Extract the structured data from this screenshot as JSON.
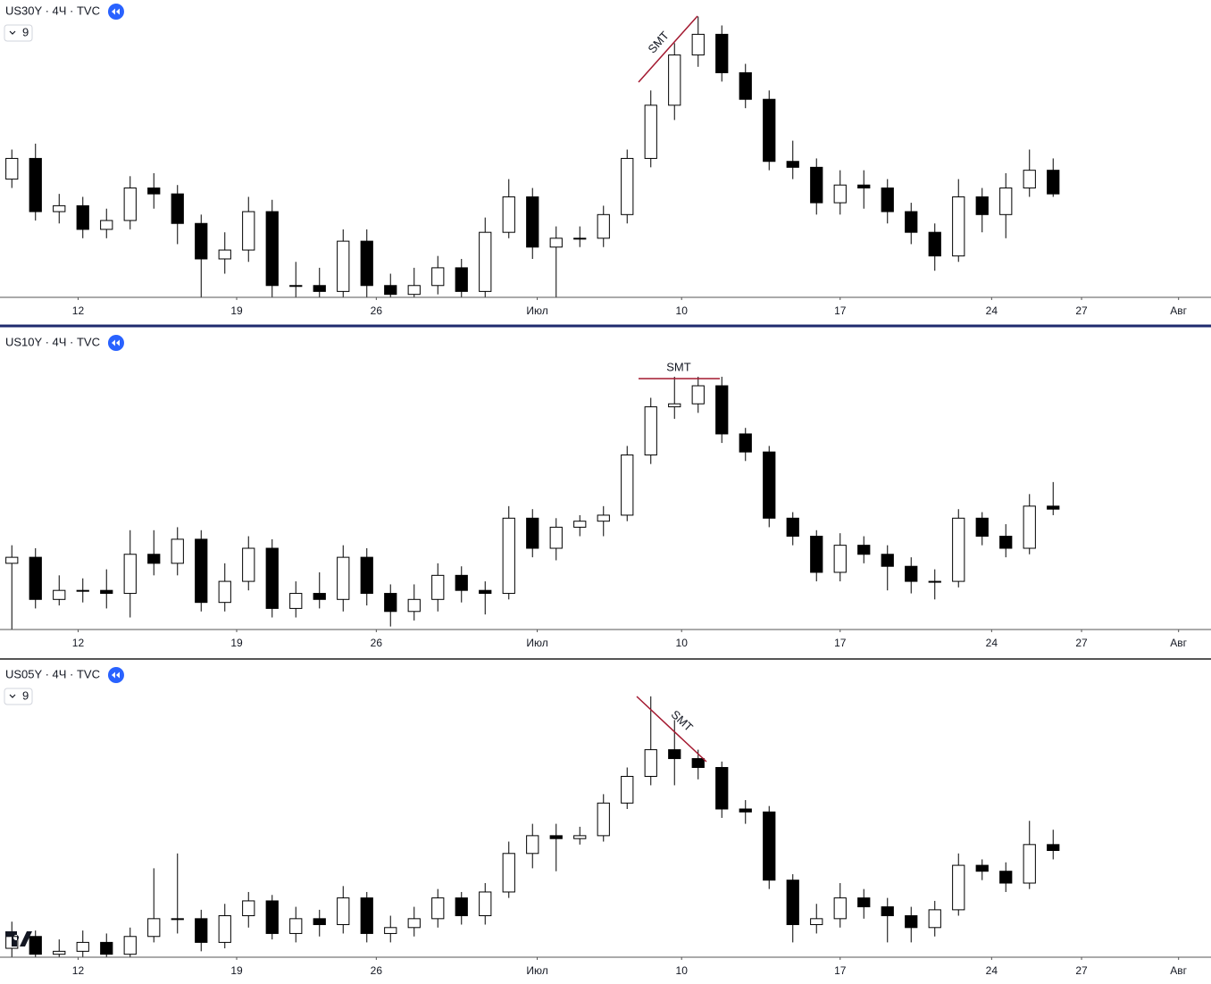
{
  "chart_data": [
    {
      "type": "candlestick",
      "title": "US30Y · 4Ч · TVC",
      "badge": "9",
      "annotation": "SMT",
      "xlim": [
        0,
        51.17
      ],
      "ylim": [
        0,
        100
      ],
      "xticks": [
        {
          "value": 3.3,
          "label": "12"
        },
        {
          "value": 10.0,
          "label": "19"
        },
        {
          "value": 15.9,
          "label": "26"
        },
        {
          "value": 22.7,
          "label": "Июл"
        },
        {
          "value": 28.8,
          "label": "10"
        },
        {
          "value": 35.5,
          "label": "17"
        },
        {
          "value": 41.9,
          "label": "24"
        },
        {
          "value": 45.7,
          "label": "27"
        },
        {
          "value": 49.8,
          "label": "Авг"
        }
      ],
      "ohlc": [
        [
          40,
          50,
          37,
          47
        ],
        [
          47,
          52,
          26,
          29
        ],
        [
          29,
          35,
          25,
          31
        ],
        [
          31,
          34,
          20,
          23
        ],
        [
          23,
          30,
          20,
          26
        ],
        [
          26,
          41,
          23,
          37
        ],
        [
          37,
          42,
          30,
          35
        ],
        [
          35,
          38,
          18,
          25
        ],
        [
          25,
          28,
          0,
          13
        ],
        [
          13,
          22,
          8,
          16
        ],
        [
          16,
          34,
          12,
          29
        ],
        [
          29,
          33,
          0,
          4
        ],
        [
          4,
          12,
          0,
          4
        ],
        [
          4,
          10,
          0,
          2
        ],
        [
          2,
          23,
          0,
          19
        ],
        [
          19,
          23,
          0,
          4
        ],
        [
          4,
          8,
          0,
          1
        ],
        [
          1,
          10,
          0,
          4
        ],
        [
          4,
          14,
          1,
          10
        ],
        [
          10,
          13,
          0,
          2
        ],
        [
          2,
          27,
          0,
          22
        ],
        [
          22,
          40,
          20,
          34
        ],
        [
          34,
          37,
          13,
          17
        ],
        [
          17,
          24,
          0,
          20
        ],
        [
          20,
          24,
          17,
          20
        ],
        [
          20,
          31,
          17,
          28
        ],
        [
          28,
          50,
          25,
          47
        ],
        [
          47,
          70,
          44,
          65
        ],
        [
          65,
          86,
          60,
          82
        ],
        [
          82,
          95,
          78,
          89
        ],
        [
          89,
          92,
          73,
          76
        ],
        [
          76,
          79,
          64,
          67
        ],
        [
          67,
          70,
          43,
          46
        ],
        [
          46,
          53,
          40,
          44
        ],
        [
          44,
          47,
          28,
          32
        ],
        [
          32,
          43,
          28,
          38
        ],
        [
          38,
          43,
          30,
          37
        ],
        [
          37,
          40,
          25,
          29
        ],
        [
          29,
          32,
          18,
          22
        ],
        [
          22,
          25,
          9,
          14
        ],
        [
          14,
          40,
          12,
          34
        ],
        [
          34,
          37,
          22,
          28
        ],
        [
          28,
          42,
          20,
          37
        ],
        [
          37,
          50,
          34,
          43
        ],
        [
          43,
          47,
          34,
          35
        ]
      ]
    },
    {
      "type": "candlestick",
      "title": "US10Y · 4Ч · TVC",
      "annotation": "SMT",
      "xlim": [
        0,
        51.17
      ],
      "ylim": [
        0,
        100
      ],
      "xticks": [
        {
          "value": 3.3,
          "label": "12"
        },
        {
          "value": 10.0,
          "label": "19"
        },
        {
          "value": 15.9,
          "label": "26"
        },
        {
          "value": 22.7,
          "label": "Июл"
        },
        {
          "value": 28.8,
          "label": "10"
        },
        {
          "value": 35.5,
          "label": "17"
        },
        {
          "value": 41.9,
          "label": "24"
        },
        {
          "value": 45.7,
          "label": "27"
        },
        {
          "value": 49.8,
          "label": "Авг"
        }
      ],
      "ohlc": [
        [
          22,
          28,
          0,
          24
        ],
        [
          24,
          27,
          7,
          10
        ],
        [
          10,
          18,
          8,
          13
        ],
        [
          13,
          17,
          9,
          13
        ],
        [
          13,
          20,
          7,
          12
        ],
        [
          12,
          33,
          4,
          25
        ],
        [
          25,
          33,
          18,
          22
        ],
        [
          22,
          34,
          18,
          30
        ],
        [
          30,
          33,
          6,
          9
        ],
        [
          9,
          22,
          6,
          16
        ],
        [
          16,
          31,
          13,
          27
        ],
        [
          27,
          30,
          4,
          7
        ],
        [
          7,
          16,
          4,
          12
        ],
        [
          12,
          19,
          7,
          10
        ],
        [
          10,
          28,
          6,
          24
        ],
        [
          24,
          27,
          8,
          12
        ],
        [
          12,
          15,
          1,
          6
        ],
        [
          6,
          15,
          3,
          10
        ],
        [
          10,
          22,
          6,
          18
        ],
        [
          18,
          21,
          9,
          13
        ],
        [
          13,
          16,
          5,
          12
        ],
        [
          12,
          41,
          10,
          37
        ],
        [
          37,
          40,
          24,
          27
        ],
        [
          27,
          37,
          23,
          34
        ],
        [
          34,
          38,
          31,
          36
        ],
        [
          36,
          41,
          31,
          38
        ],
        [
          38,
          61,
          36,
          58
        ],
        [
          58,
          77,
          55,
          74
        ],
        [
          74,
          84,
          70,
          75
        ],
        [
          75,
          84,
          72,
          81
        ],
        [
          81,
          84,
          62,
          65
        ],
        [
          65,
          67,
          56,
          59
        ],
        [
          59,
          61,
          34,
          37
        ],
        [
          37,
          39,
          28,
          31
        ],
        [
          31,
          33,
          16,
          19
        ],
        [
          19,
          32,
          16,
          28
        ],
        [
          28,
          31,
          22,
          25
        ],
        [
          25,
          28,
          13,
          21
        ],
        [
          21,
          24,
          12,
          16
        ],
        [
          16,
          20,
          10,
          16
        ],
        [
          16,
          40,
          14,
          37
        ],
        [
          37,
          39,
          28,
          31
        ],
        [
          31,
          35,
          24,
          27
        ],
        [
          27,
          45,
          25,
          41
        ],
        [
          41,
          49,
          38,
          40
        ]
      ]
    },
    {
      "type": "candlestick",
      "title": "US05Y · 4Ч · TVC",
      "badge": "9",
      "annotation": "SMT",
      "xlim": [
        0,
        51.17
      ],
      "ylim": [
        0,
        100
      ],
      "xticks": [
        {
          "value": 3.3,
          "label": "12"
        },
        {
          "value": 10.0,
          "label": "19"
        },
        {
          "value": 15.9,
          "label": "26"
        },
        {
          "value": 22.7,
          "label": "Июл"
        },
        {
          "value": 28.8,
          "label": "10"
        },
        {
          "value": 35.5,
          "label": "17"
        },
        {
          "value": 41.9,
          "label": "24"
        },
        {
          "value": 45.7,
          "label": "27"
        },
        {
          "value": 49.8,
          "label": "Авг"
        }
      ],
      "ohlc": [
        [
          3,
          12,
          0,
          7
        ],
        [
          7,
          9,
          0,
          1
        ],
        [
          1,
          6,
          0,
          2
        ],
        [
          2,
          9,
          0,
          5
        ],
        [
          5,
          8,
          0,
          1
        ],
        [
          1,
          10,
          0,
          7
        ],
        [
          7,
          30,
          5,
          13
        ],
        [
          13,
          35,
          8,
          13
        ],
        [
          13,
          16,
          2,
          5
        ],
        [
          5,
          18,
          3,
          14
        ],
        [
          14,
          22,
          10,
          19
        ],
        [
          19,
          21,
          6,
          8
        ],
        [
          8,
          17,
          5,
          13
        ],
        [
          13,
          16,
          7,
          11
        ],
        [
          11,
          24,
          8,
          20
        ],
        [
          20,
          22,
          5,
          8
        ],
        [
          8,
          14,
          5,
          10
        ],
        [
          10,
          17,
          7,
          13
        ],
        [
          13,
          23,
          10,
          20
        ],
        [
          20,
          22,
          11,
          14
        ],
        [
          14,
          25,
          11,
          22
        ],
        [
          22,
          39,
          20,
          35
        ],
        [
          35,
          45,
          30,
          41
        ],
        [
          41,
          45,
          29,
          40
        ],
        [
          40,
          44,
          38,
          41
        ],
        [
          41,
          55,
          39,
          52
        ],
        [
          52,
          64,
          50,
          61
        ],
        [
          61,
          88,
          58,
          70
        ],
        [
          70,
          80,
          58,
          67
        ],
        [
          67,
          70,
          60,
          64
        ],
        [
          64,
          66,
          47,
          50
        ],
        [
          50,
          53,
          45,
          49
        ],
        [
          49,
          51,
          23,
          26
        ],
        [
          26,
          28,
          5,
          11
        ],
        [
          11,
          18,
          8,
          13
        ],
        [
          13,
          25,
          10,
          20
        ],
        [
          20,
          23,
          13,
          17
        ],
        [
          17,
          20,
          5,
          14
        ],
        [
          14,
          17,
          5,
          10
        ],
        [
          10,
          19,
          7,
          16
        ],
        [
          16,
          35,
          14,
          31
        ],
        [
          31,
          33,
          26,
          29
        ],
        [
          29,
          32,
          22,
          25
        ],
        [
          25,
          46,
          23,
          38
        ],
        [
          38,
          43,
          33,
          36
        ]
      ]
    }
  ]
}
